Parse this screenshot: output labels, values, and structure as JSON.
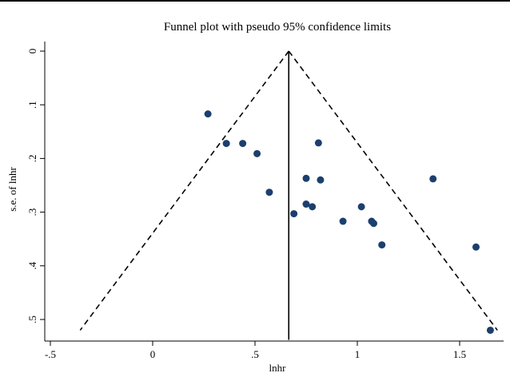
{
  "chart_data": {
    "type": "scatter",
    "title": "Funnel plot with pseudo 95% confidence limits",
    "xlabel": "lnhr",
    "ylabel": "s.e. of lnhr",
    "xlim": [
      -0.55,
      1.72
    ],
    "ylim": [
      0,
      0.53
    ],
    "y_reversed": true,
    "grid": false,
    "x_ticks": [
      {
        "value": -0.5,
        "label": "-.5"
      },
      {
        "value": 0,
        "label": "0"
      },
      {
        "value": 0.5,
        "label": ".5"
      },
      {
        "value": 1,
        "label": "1"
      },
      {
        "value": 1.5,
        "label": "1.5"
      }
    ],
    "y_ticks": [
      {
        "value": 0,
        "label": "0"
      },
      {
        "value": 0.1,
        "label": ".1"
      },
      {
        "value": 0.2,
        "label": ".2"
      },
      {
        "value": 0.3,
        "label": ".3"
      },
      {
        "value": 0.4,
        "label": ".4"
      },
      {
        "value": 0.5,
        "label": ".5"
      }
    ],
    "pooled_estimate": 0.665,
    "funnel": {
      "se_max": 0.52,
      "z": 1.96
    },
    "points": [
      {
        "x": 0.27,
        "y": 0.117
      },
      {
        "x": 0.36,
        "y": 0.172
      },
      {
        "x": 0.44,
        "y": 0.172
      },
      {
        "x": 0.51,
        "y": 0.191
      },
      {
        "x": 0.57,
        "y": 0.263
      },
      {
        "x": 0.69,
        "y": 0.303
      },
      {
        "x": 0.75,
        "y": 0.237
      },
      {
        "x": 0.75,
        "y": 0.285
      },
      {
        "x": 0.78,
        "y": 0.29
      },
      {
        "x": 0.81,
        "y": 0.171
      },
      {
        "x": 0.82,
        "y": 0.24
      },
      {
        "x": 0.93,
        "y": 0.317
      },
      {
        "x": 1.02,
        "y": 0.29
      },
      {
        "x": 1.07,
        "y": 0.317
      },
      {
        "x": 1.08,
        "y": 0.321
      },
      {
        "x": 1.12,
        "y": 0.361
      },
      {
        "x": 1.37,
        "y": 0.238
      },
      {
        "x": 1.58,
        "y": 0.365
      },
      {
        "x": 1.65,
        "y": 0.52
      }
    ]
  }
}
